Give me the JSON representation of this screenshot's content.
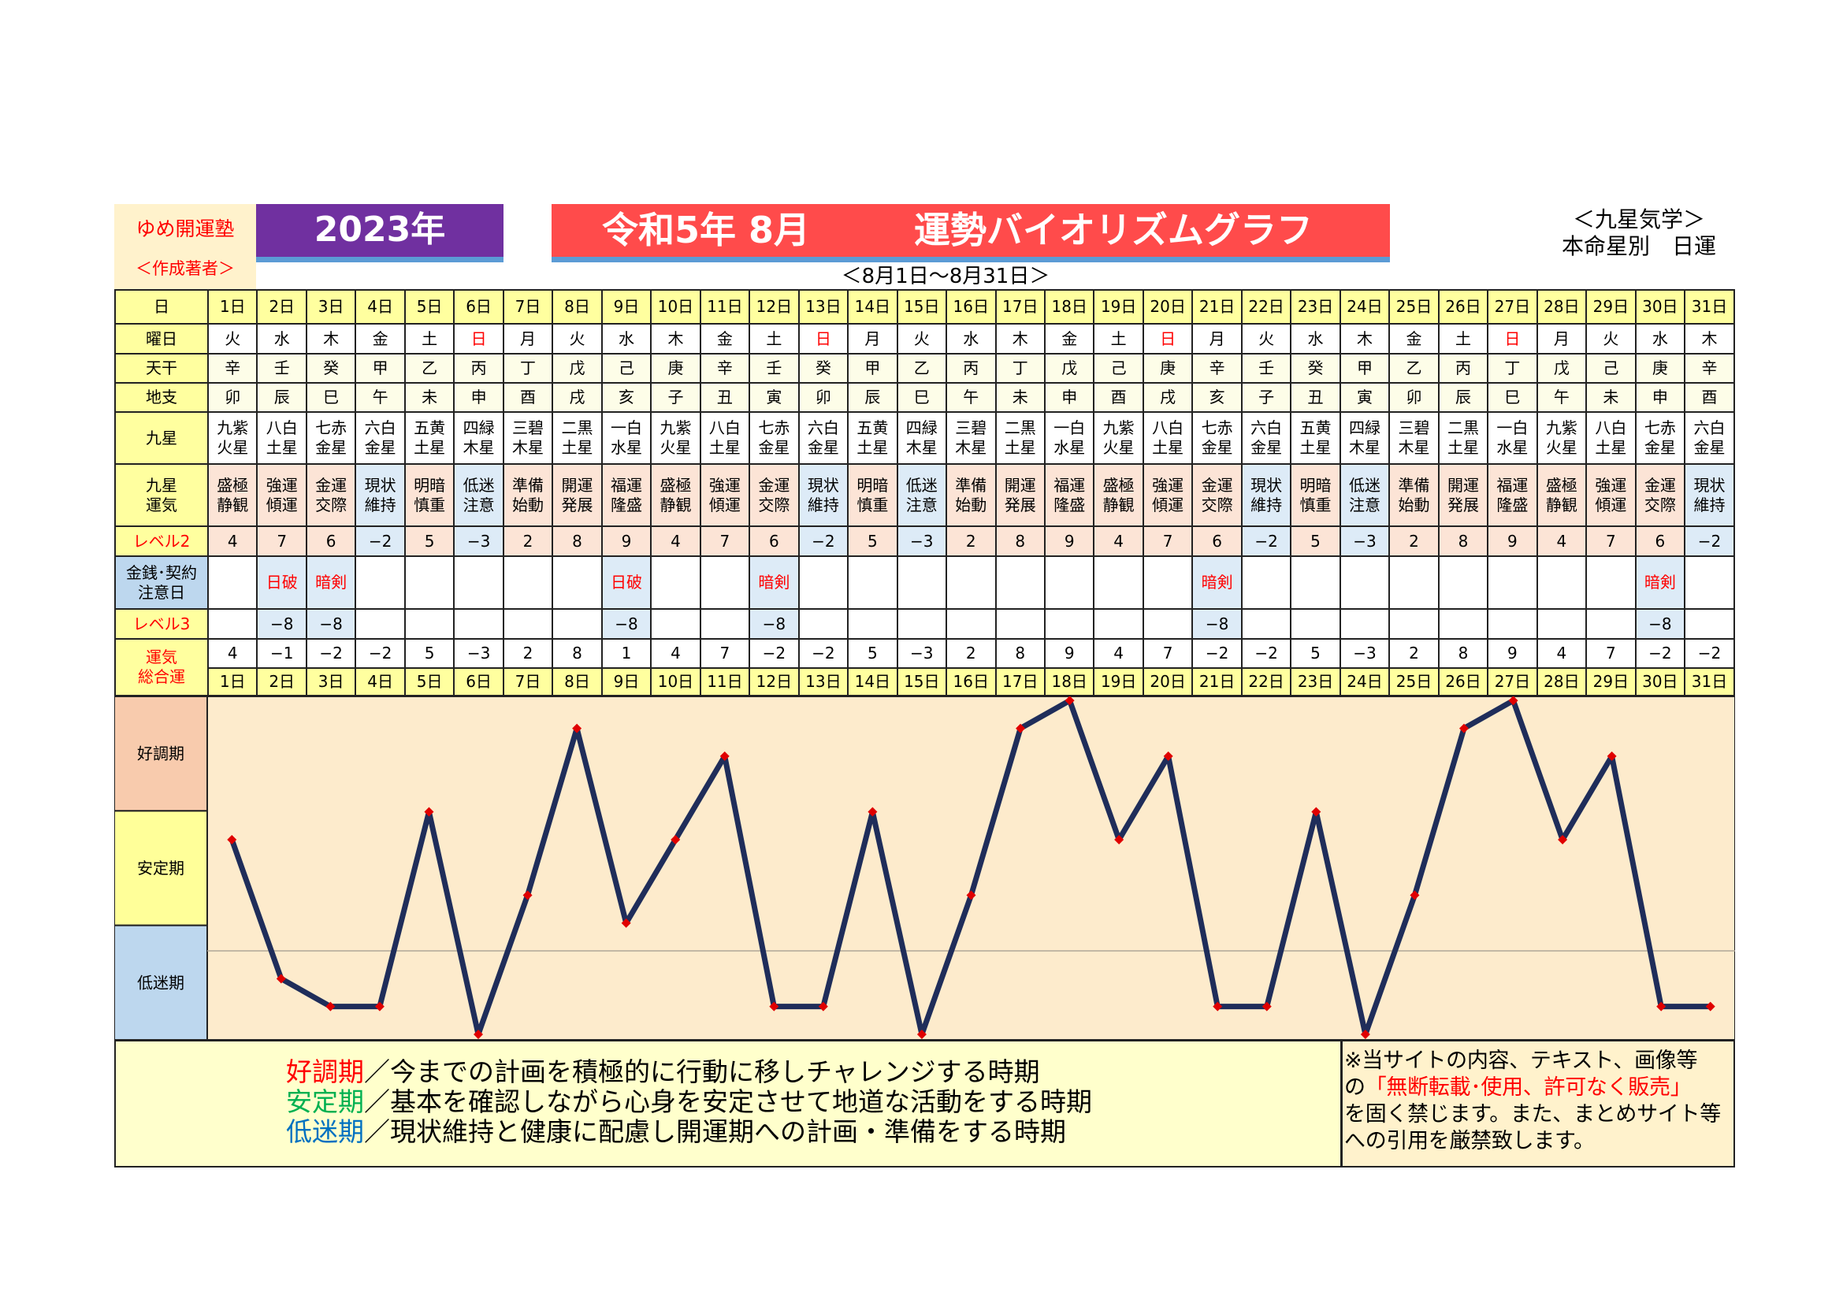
{
  "header": {
    "author": "ゆめ開運塾",
    "author_sub": "＜作成著者＞",
    "year": "2023年",
    "title_date": "令和5年 8月",
    "title_main": "運勢バイオリズムグラフ",
    "range": "＜8月1日〜8月31日＞",
    "school": "＜九星気学＞",
    "subtitle": "本命星別　日運"
  },
  "table": {
    "labels": {
      "day": "日",
      "weekday": "曜日",
      "stem": "天干",
      "branch": "地支",
      "star": "九星",
      "fortune": "九星\n運気",
      "level2": "レベル2",
      "caution": "金銭･契約\n注意日",
      "level3": "レベル3",
      "total": "運気\n総合運"
    },
    "days": [
      "1日",
      "2日",
      "3日",
      "4日",
      "5日",
      "6日",
      "7日",
      "8日",
      "9日",
      "10日",
      "11日",
      "12日",
      "13日",
      "14日",
      "15日",
      "16日",
      "17日",
      "18日",
      "19日",
      "20日",
      "21日",
      "22日",
      "23日",
      "24日",
      "25日",
      "26日",
      "27日",
      "28日",
      "29日",
      "30日",
      "31日"
    ],
    "weekday": [
      "火",
      "水",
      "木",
      "金",
      "土",
      "日",
      "月",
      "火",
      "水",
      "木",
      "金",
      "土",
      "日",
      "月",
      "火",
      "水",
      "木",
      "金",
      "土",
      "日",
      "月",
      "火",
      "水",
      "木",
      "金",
      "土",
      "日",
      "月",
      "火",
      "水",
      "木"
    ],
    "stem": [
      "辛",
      "壬",
      "癸",
      "甲",
      "乙",
      "丙",
      "丁",
      "戊",
      "己",
      "庚",
      "辛",
      "壬",
      "癸",
      "甲",
      "乙",
      "丙",
      "丁",
      "戊",
      "己",
      "庚",
      "辛",
      "壬",
      "癸",
      "甲",
      "乙",
      "丙",
      "丁",
      "戊",
      "己",
      "庚",
      "辛"
    ],
    "branch": [
      "卯",
      "辰",
      "巳",
      "午",
      "未",
      "申",
      "酉",
      "戌",
      "亥",
      "子",
      "丑",
      "寅",
      "卯",
      "辰",
      "巳",
      "午",
      "未",
      "申",
      "酉",
      "戌",
      "亥",
      "子",
      "丑",
      "寅",
      "卯",
      "辰",
      "巳",
      "午",
      "未",
      "申",
      "酉"
    ],
    "star": [
      "九紫\n火星",
      "八白\n土星",
      "七赤\n金星",
      "六白\n金星",
      "五黄\n土星",
      "四緑\n木星",
      "三碧\n木星",
      "二黒\n土星",
      "一白\n水星",
      "九紫\n火星",
      "八白\n土星",
      "七赤\n金星",
      "六白\n金星",
      "五黄\n土星",
      "四緑\n木星",
      "三碧\n木星",
      "二黒\n土星",
      "一白\n水星",
      "九紫\n火星",
      "八白\n土星",
      "七赤\n金星",
      "六白\n金星",
      "五黄\n土星",
      "四緑\n木星",
      "三碧\n木星",
      "二黒\n土星",
      "一白\n水星",
      "九紫\n火星",
      "八白\n土星",
      "七赤\n金星",
      "六白\n金星"
    ],
    "fortune": [
      "盛極\n静観",
      "強運\n傾運",
      "金運\n交際",
      "現状\n維持",
      "明暗\n慎重",
      "低迷\n注意",
      "準備\n始動",
      "開運\n発展",
      "福運\n隆盛",
      "盛極\n静観",
      "強運\n傾運",
      "金運\n交際",
      "現状\n維持",
      "明暗\n慎重",
      "低迷\n注意",
      "準備\n始動",
      "開運\n発展",
      "福運\n隆盛",
      "盛極\n静観",
      "強運\n傾運",
      "金運\n交際",
      "現状\n維持",
      "明暗\n慎重",
      "低迷\n注意",
      "準備\n始動",
      "開運\n発展",
      "福運\n隆盛",
      "盛極\n静観",
      "強運\n傾運",
      "金運\n交際",
      "現状\n維持"
    ],
    "level2": [
      "4",
      "7",
      "6",
      "−2",
      "5",
      "−3",
      "2",
      "8",
      "9",
      "4",
      "7",
      "6",
      "−2",
      "5",
      "−3",
      "2",
      "8",
      "9",
      "4",
      "7",
      "6",
      "−2",
      "5",
      "−3",
      "2",
      "8",
      "9",
      "4",
      "7",
      "6",
      "−2"
    ],
    "caution": [
      "",
      "日破",
      "暗剣",
      "",
      "",
      "",
      "",
      "",
      "日破",
      "",
      "",
      "暗剣",
      "",
      "",
      "",
      "",
      "",
      "",
      "",
      "",
      "暗剣",
      "",
      "",
      "",
      "",
      "",
      "",
      "",
      "",
      "暗剣",
      ""
    ],
    "level3": [
      "",
      "−8",
      "−8",
      "",
      "",
      "",
      "",
      "",
      "−8",
      "",
      "",
      "−8",
      "",
      "",
      "",
      "",
      "",
      "",
      "",
      "",
      "−8",
      "",
      "",
      "",
      "",
      "",
      "",
      "",
      "",
      "−8",
      ""
    ],
    "total": [
      "4",
      "−1",
      "−2",
      "−2",
      "5",
      "−3",
      "2",
      "8",
      "1",
      "4",
      "7",
      "−2",
      "−2",
      "5",
      "−3",
      "2",
      "8",
      "9",
      "4",
      "7",
      "−2",
      "−2",
      "5",
      "−3",
      "2",
      "8",
      "9",
      "4",
      "7",
      "−2",
      "−2"
    ]
  },
  "colors": {
    "label": "#ffff9f",
    "positive": "#fce4d6",
    "negative": "#ddebf7",
    "sunday": "#ff0000",
    "line": "#1f2d5a",
    "marker": "#e00000",
    "plot_bg": "#fdebcc"
  },
  "chart_data": {
    "type": "line",
    "x": [
      "1日",
      "2日",
      "3日",
      "4日",
      "5日",
      "6日",
      "7日",
      "8日",
      "9日",
      "10日",
      "11日",
      "12日",
      "13日",
      "14日",
      "15日",
      "16日",
      "17日",
      "18日",
      "19日",
      "20日",
      "21日",
      "22日",
      "23日",
      "24日",
      "25日",
      "26日",
      "27日",
      "28日",
      "29日",
      "30日",
      "31日"
    ],
    "values": [
      4,
      -1,
      -2,
      -2,
      5,
      -3,
      2,
      8,
      1,
      4,
      7,
      -2,
      -2,
      5,
      -3,
      2,
      8,
      9,
      4,
      7,
      -2,
      -2,
      5,
      -3,
      2,
      8,
      9,
      4,
      7,
      -2,
      -2
    ],
    "ylim": [
      -3.2,
      9.15
    ],
    "zones": [
      {
        "label": "好調期",
        "color": "#f8cbad"
      },
      {
        "label": "安定期",
        "color": "#ffff99"
      },
      {
        "label": "低迷期",
        "color": "#bdd7ee"
      }
    ],
    "baseline": 0,
    "marker": "diamond"
  },
  "legend": {
    "items": [
      {
        "term": "好調期",
        "color": "#ff0000",
        "text": "／今までの計画を積極的に行動に移しチャレンジする時期"
      },
      {
        "term": "安定期",
        "color": "#00b050",
        "text": "／基本を確認しながら心身を安定させて地道な活動をする時期"
      },
      {
        "term": "低迷期",
        "color": "#0070c0",
        "text": "／現状維持と健康に配慮し開運期への計画・準備をする時期"
      }
    ],
    "notice_1": "※当サイトの内容、テキスト、画像等",
    "notice_2a": "の",
    "notice_2b": "「無断転載･使用、許可なく販売」",
    "notice_3": "を固く禁じます。また、まとめサイト等",
    "notice_4": "への引用を厳禁致します。"
  }
}
